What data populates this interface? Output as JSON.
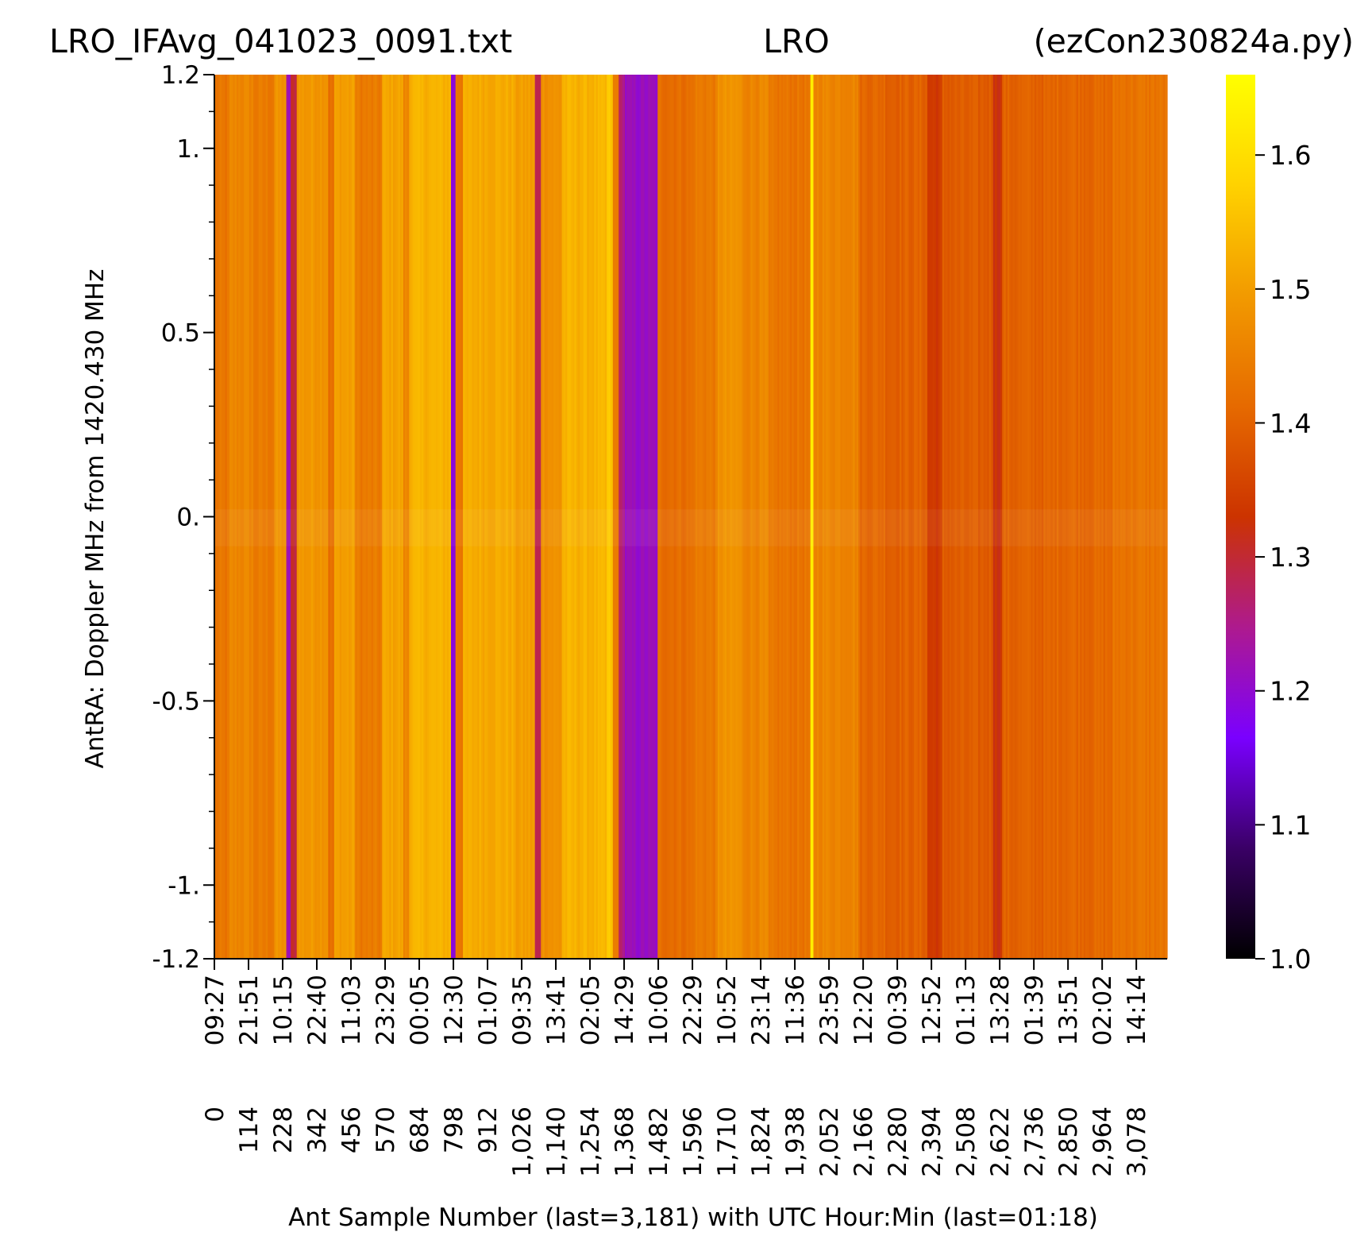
{
  "chart_data": {
    "type": "heatmap",
    "title_left": "LRO_IFAvg_041023_0091.txt",
    "title_center": "LRO",
    "title_right": "(ezCon230824a.py)",
    "ylabel": "AntRA:  Doppler MHz from 1420.430 MHz",
    "xlabel": "Ant Sample Number (last=3,181) with UTC Hour:Min (last=01:18)",
    "xlim": [
      0,
      3181
    ],
    "ylim": [
      -1.2,
      1.2
    ],
    "y_ticks": [
      {
        "value": 1.2,
        "label": "1.2"
      },
      {
        "value": 1.0,
        "label": "1."
      },
      {
        "value": 0.5,
        "label": "0.5"
      },
      {
        "value": 0.0,
        "label": "0."
      },
      {
        "value": -0.5,
        "label": "-0.5"
      },
      {
        "value": -1.0,
        "label": "-1."
      },
      {
        "value": -1.2,
        "label": "-1.2"
      }
    ],
    "x_ticks": [
      0,
      114,
      228,
      342,
      456,
      570,
      684,
      798,
      912,
      1026,
      1140,
      1254,
      1368,
      1482,
      1596,
      1710,
      1824,
      1938,
      2052,
      2166,
      2280,
      2394,
      2508,
      2622,
      2736,
      2850,
      2964,
      3078
    ],
    "x_tick_sample_labels": [
      "0",
      "114",
      "228",
      "342",
      "456",
      "570",
      "684",
      "798",
      "912",
      "1,026",
      "1,140",
      "1,254",
      "1,368",
      "1,482",
      "1,596",
      "1,710",
      "1,824",
      "1,938",
      "2,052",
      "2,166",
      "2,280",
      "2,394",
      "2,508",
      "2,622",
      "2,736",
      "2,850",
      "2,964",
      "3,078"
    ],
    "x_tick_time_labels": [
      "09:27",
      "21:51",
      "10:15",
      "22:40",
      "11:03",
      "23:29",
      "00:05",
      "12:30",
      "01:07",
      "09:35",
      "13:41",
      "02:05",
      "14:29",
      "10:06",
      "22:29",
      "10:52",
      "23:14",
      "11:36",
      "23:59",
      "12:20",
      "00:39",
      "12:52",
      "01:13",
      "13:28",
      "01:39",
      "13:51",
      "02:02",
      "14:14"
    ],
    "colorbar": {
      "min": 1.0,
      "max": 1.66,
      "ticks": [
        1.0,
        1.1,
        1.2,
        1.3,
        1.4,
        1.5,
        1.6
      ],
      "tick_labels": [
        "1.0",
        "1.1",
        "1.2",
        "1.3",
        "1.4",
        "1.5",
        "1.6"
      ],
      "colormap": "gnuplot",
      "stops": [
        "#000000",
        "#3a0066",
        "#7a00ff",
        "#ae1a8e",
        "#cc3300",
        "#e66a00",
        "#f29a00",
        "#ffd200",
        "#ffff00"
      ]
    },
    "column_segments": [
      {
        "x0": 0,
        "x1": 50,
        "value": 1.43
      },
      {
        "x0": 50,
        "x1": 130,
        "value": 1.46
      },
      {
        "x0": 130,
        "x1": 200,
        "value": 1.44
      },
      {
        "x0": 200,
        "x1": 240,
        "value": 1.48
      },
      {
        "x0": 240,
        "x1": 255,
        "value": 1.22
      },
      {
        "x0": 255,
        "x1": 275,
        "value": 1.3
      },
      {
        "x0": 275,
        "x1": 380,
        "value": 1.49
      },
      {
        "x0": 380,
        "x1": 400,
        "value": 1.42
      },
      {
        "x0": 400,
        "x1": 470,
        "value": 1.5
      },
      {
        "x0": 470,
        "x1": 560,
        "value": 1.44
      },
      {
        "x0": 560,
        "x1": 630,
        "value": 1.51
      },
      {
        "x0": 630,
        "x1": 650,
        "value": 1.46
      },
      {
        "x0": 650,
        "x1": 790,
        "value": 1.53
      },
      {
        "x0": 790,
        "x1": 805,
        "value": 1.19
      },
      {
        "x0": 805,
        "x1": 830,
        "value": 1.44
      },
      {
        "x0": 830,
        "x1": 1000,
        "value": 1.52
      },
      {
        "x0": 1000,
        "x1": 1070,
        "value": 1.5
      },
      {
        "x0": 1070,
        "x1": 1090,
        "value": 1.28
      },
      {
        "x0": 1090,
        "x1": 1160,
        "value": 1.48
      },
      {
        "x0": 1160,
        "x1": 1310,
        "value": 1.53
      },
      {
        "x0": 1310,
        "x1": 1330,
        "value": 1.56
      },
      {
        "x0": 1330,
        "x1": 1350,
        "value": 1.44
      },
      {
        "x0": 1350,
        "x1": 1370,
        "value": 1.26
      },
      {
        "x0": 1370,
        "x1": 1480,
        "value": 1.21
      },
      {
        "x0": 1480,
        "x1": 1600,
        "value": 1.42
      },
      {
        "x0": 1600,
        "x1": 1680,
        "value": 1.44
      },
      {
        "x0": 1680,
        "x1": 1760,
        "value": 1.48
      },
      {
        "x0": 1760,
        "x1": 1850,
        "value": 1.46
      },
      {
        "x0": 1850,
        "x1": 1990,
        "value": 1.43
      },
      {
        "x0": 1990,
        "x1": 2000,
        "value": 1.62
      },
      {
        "x0": 2000,
        "x1": 2150,
        "value": 1.46
      },
      {
        "x0": 2150,
        "x1": 2240,
        "value": 1.41
      },
      {
        "x0": 2240,
        "x1": 2380,
        "value": 1.4
      },
      {
        "x0": 2380,
        "x1": 2430,
        "value": 1.34
      },
      {
        "x0": 2430,
        "x1": 2600,
        "value": 1.39
      },
      {
        "x0": 2600,
        "x1": 2630,
        "value": 1.33
      },
      {
        "x0": 2630,
        "x1": 2800,
        "value": 1.4
      },
      {
        "x0": 2800,
        "x1": 3000,
        "value": 1.41
      },
      {
        "x0": 3000,
        "x1": 3181,
        "value": 1.43
      }
    ]
  }
}
